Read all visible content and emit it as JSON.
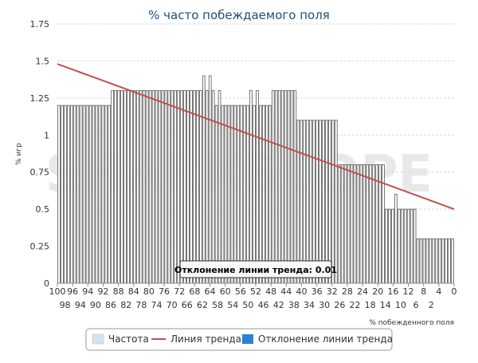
{
  "chart_data": {
    "type": "bar",
    "title": "% часто побеждаемого поля",
    "xlabel": "% побежденного поля",
    "ylabel": "% игр",
    "ylim": [
      0,
      1.75
    ],
    "yticks": [
      0,
      0.25,
      0.5,
      0.75,
      1,
      1.25,
      1.5,
      1.75
    ],
    "y_tick_labels": [
      "0",
      "0.25",
      "0.5",
      "0.75",
      "1",
      "1.25",
      "1.5",
      "1.75"
    ],
    "x_tick_labels_top": [
      "100",
      "96",
      "94",
      "92",
      "88",
      "84",
      "80",
      "76",
      "72",
      "68",
      "64",
      "60",
      "56",
      "52",
      "48",
      "44",
      "40",
      "36",
      "32",
      "28",
      "24",
      "20",
      "16",
      "12",
      "8",
      "4",
      "0"
    ],
    "x_tick_labels_bottom": [
      "98",
      "94",
      "90",
      "86",
      "82",
      "78",
      "74",
      "70",
      "66",
      "62",
      "58",
      "54",
      "50",
      "46",
      "42",
      "38",
      "34",
      "30",
      "26",
      "22",
      "18",
      "14",
      "10",
      "6",
      "2"
    ],
    "grid": true,
    "legend_position": "bottom",
    "series": [
      {
        "name": "Частота",
        "color": "#ffffff",
        "stroke": "#555555",
        "values": [
          1.2,
          1.2,
          1.2,
          1.2,
          1.2,
          1.2,
          1.2,
          1.2,
          1.2,
          1.2,
          1.2,
          1.2,
          1.2,
          1.2,
          1.2,
          1.2,
          1.2,
          1.3,
          1.3,
          1.3,
          1.3,
          1.3,
          1.3,
          1.3,
          1.3,
          1.3,
          1.3,
          1.3,
          1.3,
          1.3,
          1.3,
          1.3,
          1.3,
          1.3,
          1.3,
          1.3,
          1.3,
          1.3,
          1.3,
          1.3,
          1.3,
          1.3,
          1.3,
          1.3,
          1.3,
          1.3,
          1.4,
          1.3,
          1.4,
          1.3,
          1.2,
          1.3,
          1.2,
          1.2,
          1.2,
          1.2,
          1.2,
          1.2,
          1.2,
          1.2,
          1.2,
          1.3,
          1.2,
          1.3,
          1.2,
          1.2,
          1.2,
          1.2,
          1.3,
          1.3,
          1.3,
          1.3,
          1.3,
          1.3,
          1.3,
          1.3,
          1.1,
          1.1,
          1.1,
          1.1,
          1.1,
          1.1,
          1.1,
          1.1,
          1.1,
          1.1,
          1.1,
          1.1,
          1.1,
          0.8,
          0.8,
          0.8,
          0.8,
          0.8,
          0.8,
          0.8,
          0.8,
          0.8,
          0.8,
          0.8,
          0.8,
          0.8,
          0.8,
          0.8,
          0.5,
          0.5,
          0.5,
          0.6,
          0.5,
          0.5,
          0.5,
          0.5,
          0.5,
          0.5,
          0.3,
          0.3,
          0.3,
          0.3,
          0.3,
          0.3,
          0.3,
          0.3,
          0.3,
          0.3,
          0.3,
          0.3
        ]
      },
      {
        "name": "Линия тренда",
        "type": "line",
        "color": "#c0504d",
        "start": 1.48,
        "end": 0.5
      },
      {
        "name": "Отклонение линии тренда",
        "color": "#2f7ed8"
      }
    ],
    "annotation": "Отклонение линии тренда: 0.01"
  },
  "watermark": "SHARKSCOPE"
}
